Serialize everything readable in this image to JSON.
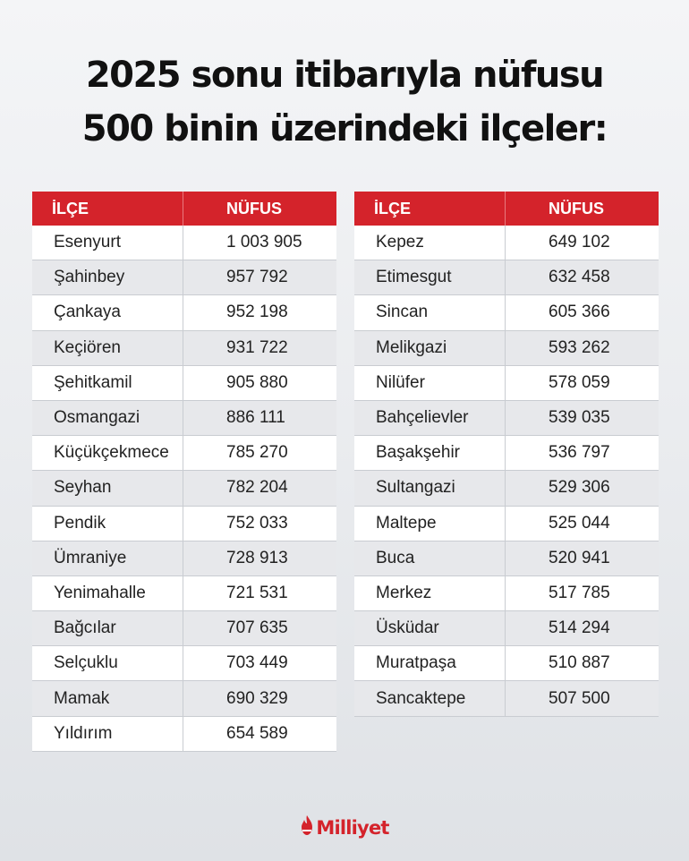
{
  "title": {
    "line1": "2025 sonu itibarıyla nüfusu",
    "line2": "500 binin üzerindeki ilçeler:"
  },
  "headers": {
    "district": "İLÇE",
    "population": "NÜFUS"
  },
  "table_left": [
    {
      "district": "Esenyurt",
      "population": "1 003 905"
    },
    {
      "district": "Şahinbey",
      "population": "957 792"
    },
    {
      "district": "Çankaya",
      "population": "952 198"
    },
    {
      "district": "Keçiören",
      "population": "931 722"
    },
    {
      "district": "Şehitkamil",
      "population": "905 880"
    },
    {
      "district": "Osmangazi",
      "population": "886 111"
    },
    {
      "district": "Küçükçekmece",
      "population": "785 270"
    },
    {
      "district": "Seyhan",
      "population": "782 204"
    },
    {
      "district": "Pendik",
      "population": "752 033"
    },
    {
      "district": "Ümraniye",
      "population": "728 913"
    },
    {
      "district": "Yenimahalle",
      "population": "721 531"
    },
    {
      "district": "Bağcılar",
      "population": "707 635"
    },
    {
      "district": "Selçuklu",
      "population": "703 449"
    },
    {
      "district": "Mamak",
      "population": "690 329"
    },
    {
      "district": "Yıldırım",
      "population": "654 589"
    }
  ],
  "table_right": [
    {
      "district": "Kepez",
      "population": "649 102"
    },
    {
      "district": "Etimesgut",
      "population": "632 458"
    },
    {
      "district": "Sincan",
      "population": "605 366"
    },
    {
      "district": "Melikgazi",
      "population": "593 262"
    },
    {
      "district": "Nilüfer",
      "population": "578 059"
    },
    {
      "district": "Bahçelievler",
      "population": "539 035"
    },
    {
      "district": "Başakşehir",
      "population": "536 797"
    },
    {
      "district": "Sultangazi",
      "population": "529 306"
    },
    {
      "district": "Maltepe",
      "population": "525 044"
    },
    {
      "district": "Buca",
      "population": "520 941"
    },
    {
      "district": "Merkez",
      "population": "517 785"
    },
    {
      "district": "Üsküdar",
      "population": "514 294"
    },
    {
      "district": "Muratpaşa",
      "population": "510 887"
    },
    {
      "district": "Sancaktepe",
      "population": "507 500"
    }
  ],
  "logo": {
    "text": "Milliyet",
    "icon": "flame-icon",
    "color": "#d4232b"
  },
  "colors": {
    "header_bg": "#d4232b",
    "row_alt": "#e7e8eb"
  }
}
